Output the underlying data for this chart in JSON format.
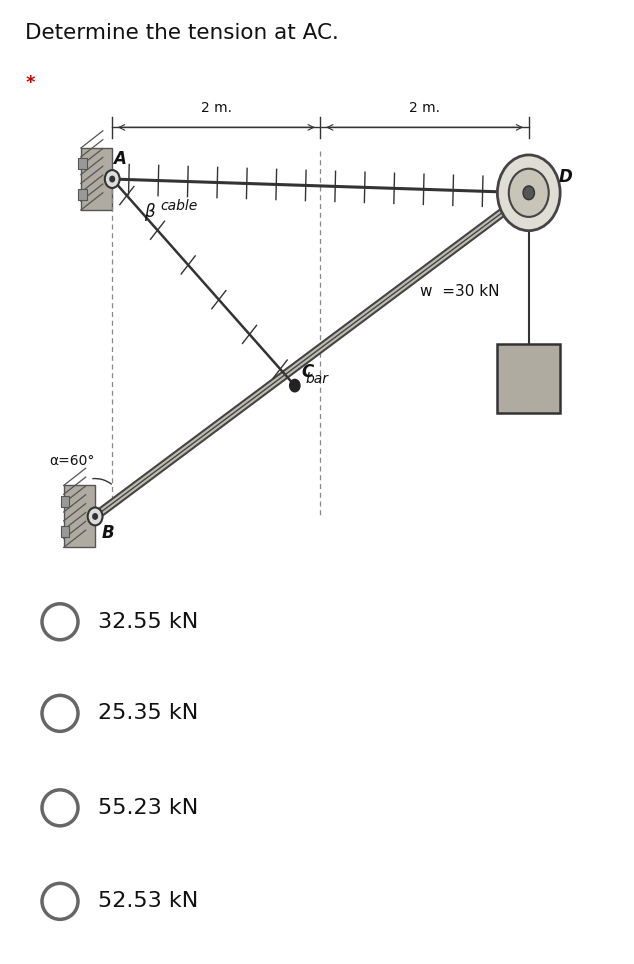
{
  "title": "Determine the tension at AC.",
  "subtitle": "*",
  "subtitle_color": "#cc0000",
  "bg_color": "#ffffff",
  "diagram_bg": "#c8c4b8",
  "options": [
    "32.55 kN",
    "25.35 kN",
    "55.23 kN",
    "52.53 kN"
  ],
  "dim_label_2m_left": "2 m.",
  "dim_label_2m_right": "2 m.",
  "label_A": "A",
  "label_beta": "β",
  "label_cable": "cable",
  "label_alpha": "α=60°",
  "label_C": "C",
  "label_bar": "bar",
  "label_B": "B",
  "label_D": "D",
  "label_w": "w  =30 kN"
}
